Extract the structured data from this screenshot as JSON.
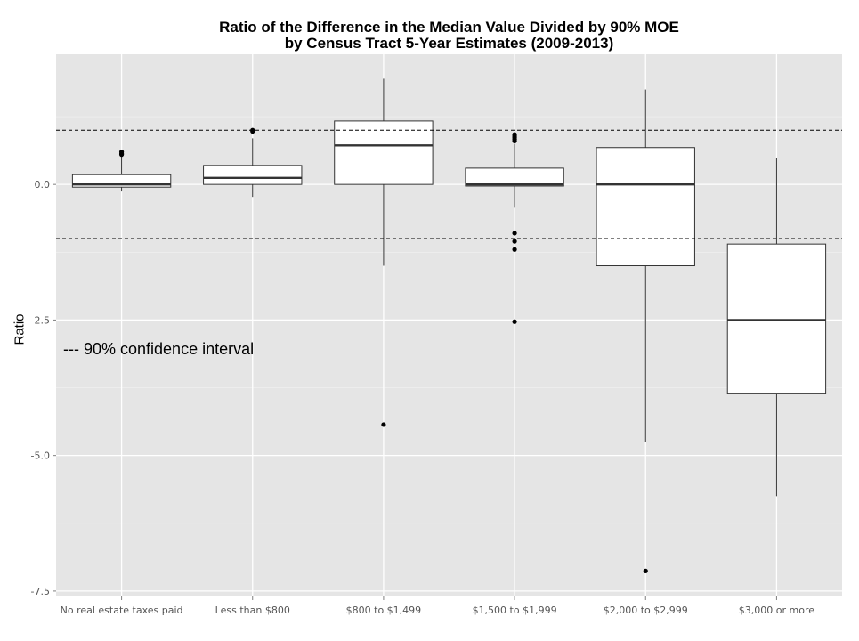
{
  "chart_data": {
    "type": "boxplot",
    "title_line1": "Ratio of the Difference in the Median Value Divided by 90% MOE",
    "title_line2": "by Census Tract 5-Year Estimates (2009-2013)",
    "xlabel": "",
    "ylabel": "Ratio",
    "ylim": [
      -7.6,
      2.4
    ],
    "yticks": [
      0.0,
      -2.5,
      -5.0,
      -7.5
    ],
    "ytick_labels": [
      "0.0",
      "-2.5",
      "-5.0",
      "-7.5"
    ],
    "grid": true,
    "reference_lines": [
      1.0,
      -1.0
    ],
    "annotation": "--- 90% confidence interval",
    "categories": [
      "No real estate taxes paid",
      "Less than $800",
      "$800 to $1,499",
      "$1,500 to $1,999",
      "$2,000 to $2,999",
      "$3,000 or more"
    ],
    "boxes": [
      {
        "whisker_low": -0.13,
        "q1": -0.05,
        "median": 0.0,
        "q3": 0.18,
        "whisker_high": 0.52,
        "outliers": [
          0.55,
          0.57,
          0.6
        ]
      },
      {
        "whisker_low": -0.23,
        "q1": 0.0,
        "median": 0.12,
        "q3": 0.35,
        "whisker_high": 0.85,
        "outliers": [
          0.98,
          1.0
        ]
      },
      {
        "whisker_low": -1.5,
        "q1": 0.0,
        "median": 0.72,
        "q3": 1.17,
        "whisker_high": 1.95,
        "outliers": [
          -4.43
        ]
      },
      {
        "whisker_low": -0.43,
        "q1": -0.03,
        "median": 0.0,
        "q3": 0.3,
        "whisker_high": 0.75,
        "outliers": [
          0.8,
          0.83,
          0.86,
          0.89,
          0.92,
          -0.9,
          -1.05,
          -1.2,
          -2.53
        ]
      },
      {
        "whisker_low": -4.75,
        "q1": -1.5,
        "median": 0.0,
        "q3": 0.68,
        "whisker_high": 1.75,
        "outliers": [
          -7.13
        ]
      },
      {
        "whisker_low": -5.75,
        "q1": -3.85,
        "median": -2.5,
        "q3": -1.1,
        "whisker_high": 0.48,
        "outliers": []
      }
    ]
  }
}
